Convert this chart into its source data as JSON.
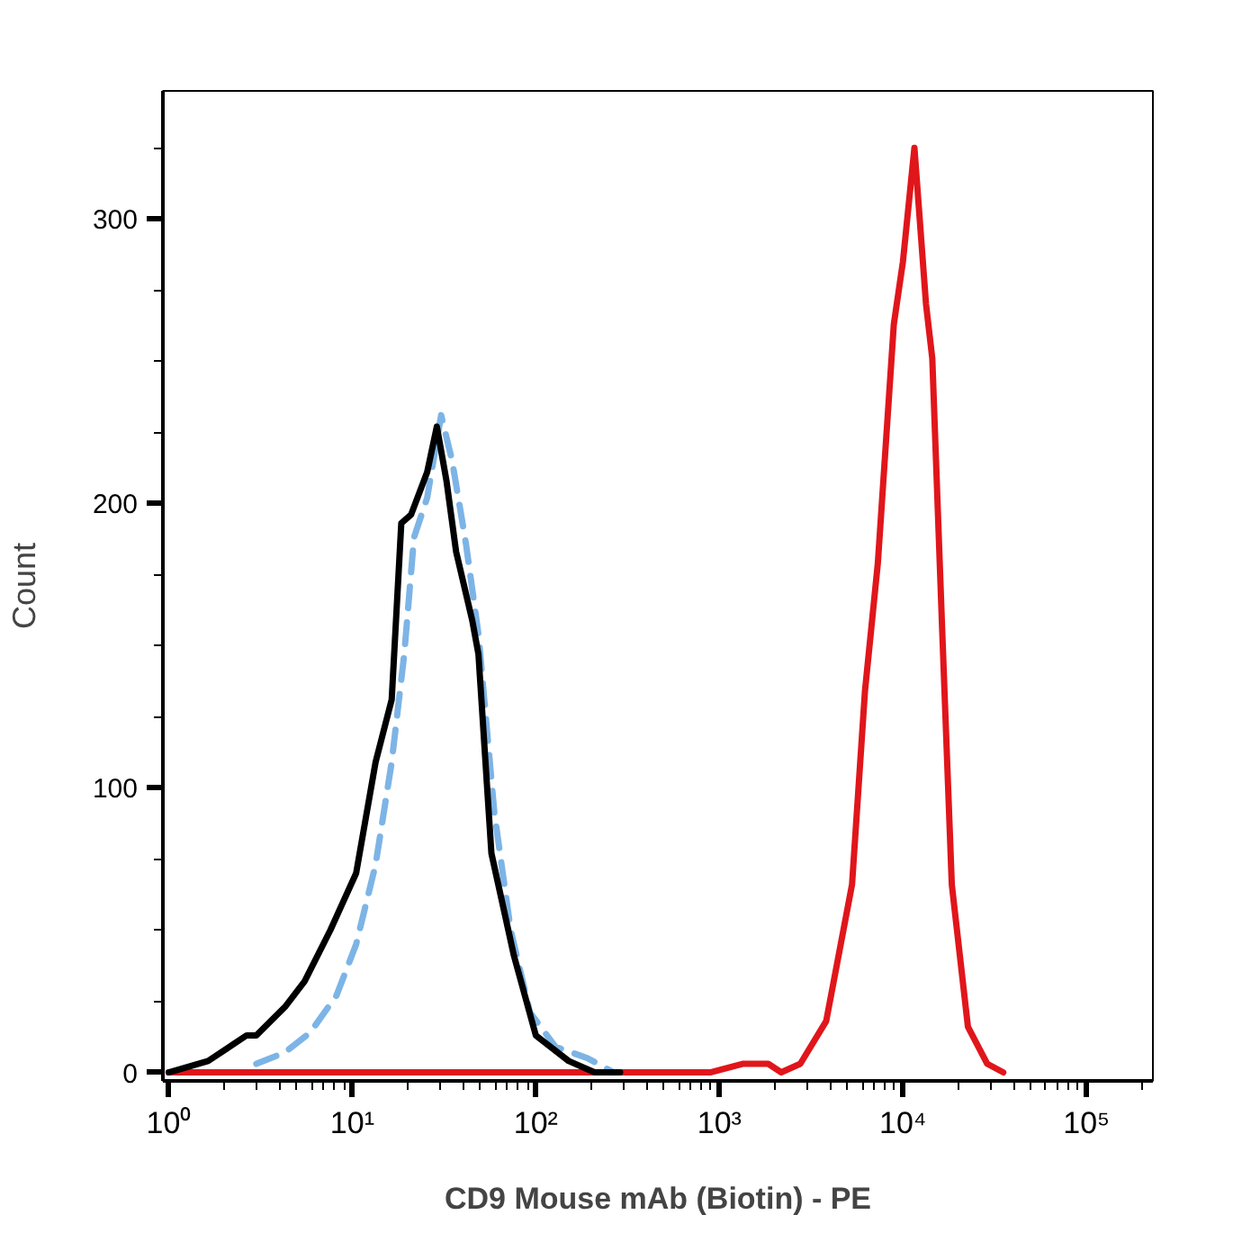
{
  "chart_data": {
    "type": "line",
    "xlabel": "CD9 Mouse mAb (Biotin) - PE",
    "ylabel": "Count",
    "log": "x",
    "xlim": [
      0.93,
      230000
    ],
    "ylim": [
      -3,
      345
    ],
    "xticks": [
      {
        "value": 1,
        "label": "10⁰"
      },
      {
        "value": 10,
        "label": "10¹"
      },
      {
        "value": 100,
        "label": "10²"
      },
      {
        "value": 1000,
        "label": "10³"
      },
      {
        "value": 10000,
        "label": "10⁴"
      },
      {
        "value": 100000,
        "label": "10⁵"
      }
    ],
    "yticks": [
      0,
      100,
      200,
      300
    ],
    "grid": false,
    "marker": "none",
    "series": [
      {
        "color": "#e0161b",
        "line_style": "solid",
        "x": [
          1,
          600,
          891,
          1337,
          1846,
          2173,
          2760,
          3818,
          5280,
          6210,
          7300,
          8920,
          10000,
          11550,
          13360,
          14450,
          16350,
          18460,
          22600,
          28800,
          35200
        ],
        "values": [
          0,
          0,
          0,
          3,
          3,
          0,
          3,
          18,
          66,
          134,
          179,
          263,
          285,
          325,
          270,
          251,
          156,
          66,
          16,
          3,
          0
        ]
      },
      {
        "color": "#7db4e6",
        "line_style": "dashed",
        "x": [
          3.0,
          4.3,
          5.9,
          8.2,
          10.5,
          13.4,
          16.4,
          19.2,
          21.7,
          25.6,
          30.5,
          35,
          41.6,
          48.7,
          59.5,
          73,
          93,
          128,
          191,
          265
        ],
        "values": [
          3,
          7,
          14,
          27,
          45,
          73,
          109,
          147,
          188,
          202,
          231,
          215,
          186,
          154,
          91,
          50,
          21,
          9,
          5,
          0
        ]
      },
      {
        "color": "#000000",
        "line_style": "solid",
        "x": [
          1.0,
          1.64,
          2.66,
          3.0,
          4.3,
          5.5,
          7.6,
          10.5,
          13.4,
          16.4,
          18.5,
          20.9,
          25.6,
          28.9,
          32.6,
          36.8,
          45,
          48.7,
          57.3,
          76,
          100,
          151,
          209,
          288
        ],
        "values": [
          0,
          4,
          13,
          13,
          23,
          32,
          50,
          70,
          109,
          131,
          193,
          196,
          211,
          227,
          208,
          183,
          159,
          147,
          77,
          41,
          13,
          4,
          0,
          0
        ]
      }
    ]
  }
}
